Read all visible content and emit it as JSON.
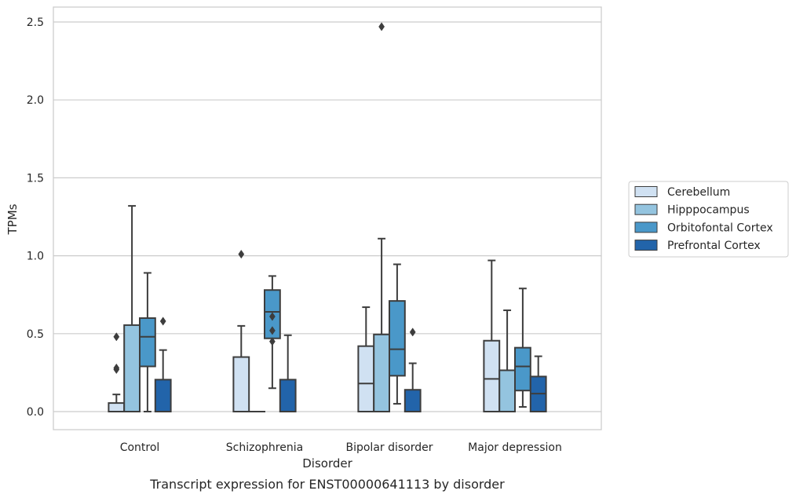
{
  "caption": "Transcript expression for ENST00000641113 by disorder",
  "chart_data": {
    "type": "box",
    "xlabel": "Disorder",
    "ylabel": "TPMs",
    "ylim": [
      -0.12,
      2.6
    ],
    "yticks": [
      "0.0",
      "0.5",
      "1.0",
      "1.5",
      "2.0",
      "2.5"
    ],
    "grid": "horizontal",
    "legend_position": "right",
    "categories": [
      "Control",
      "Schizophrenia",
      "Bipolar disorder",
      "Major depression"
    ],
    "series": [
      {
        "name": "Cerebellum",
        "color": "#d0e1f2",
        "boxes": [
          {
            "min": 0.0,
            "q1": 0.0,
            "median": 0.0,
            "q3": 0.055,
            "max": 0.11,
            "outliers": [
              0.27,
              0.28,
              0.48
            ]
          },
          {
            "min": 0.0,
            "q1": 0.0,
            "median": 0.0,
            "q3": 0.35,
            "max": 0.55,
            "outliers": [
              1.01
            ]
          },
          {
            "min": 0.0,
            "q1": 0.0,
            "median": 0.18,
            "q3": 0.42,
            "max": 0.67,
            "outliers": []
          },
          {
            "min": 0.0,
            "q1": 0.0,
            "median": 0.21,
            "q3": 0.455,
            "max": 0.97,
            "outliers": []
          }
        ]
      },
      {
        "name": "Hipppocampus",
        "color": "#94c4df",
        "boxes": [
          {
            "min": 0.0,
            "q1": 0.0,
            "median": 0.0,
            "q3": 0.555,
            "max": 1.32,
            "outliers": []
          },
          {
            "min": 0.0,
            "q1": 0.0,
            "median": 0.0,
            "q3": 0.0,
            "max": 0.0,
            "outliers": []
          },
          {
            "min": 0.0,
            "q1": 0.0,
            "median": 0.0,
            "q3": 0.495,
            "max": 1.11,
            "outliers": [
              2.47
            ]
          },
          {
            "min": 0.0,
            "q1": 0.0,
            "median": 0.0,
            "q3": 0.265,
            "max": 0.65,
            "outliers": []
          }
        ]
      },
      {
        "name": "Orbitofontal Cortex",
        "color": "#4a98c9",
        "boxes": [
          {
            "min": 0.0,
            "q1": 0.29,
            "median": 0.48,
            "q3": 0.6,
            "max": 0.89,
            "outliers": []
          },
          {
            "min": 0.15,
            "q1": 0.47,
            "median": 0.64,
            "q3": 0.78,
            "max": 0.87,
            "outliers": [
              0.45,
              0.52,
              0.61
            ]
          },
          {
            "min": 0.05,
            "q1": 0.23,
            "median": 0.4,
            "q3": 0.71,
            "max": 0.945,
            "outliers": []
          },
          {
            "min": 0.03,
            "q1": 0.135,
            "median": 0.29,
            "q3": 0.41,
            "max": 0.79,
            "outliers": []
          }
        ]
      },
      {
        "name": "Prefrontal Cortex",
        "color": "#2264aa",
        "boxes": [
          {
            "min": 0.0,
            "q1": 0.0,
            "median": 0.0,
            "q3": 0.205,
            "max": 0.395,
            "outliers": [
              0.58
            ]
          },
          {
            "min": 0.0,
            "q1": 0.0,
            "median": 0.0,
            "q3": 0.205,
            "max": 0.49,
            "outliers": []
          },
          {
            "min": 0.0,
            "q1": 0.0,
            "median": 0.0,
            "q3": 0.14,
            "max": 0.31,
            "outliers": [
              0.51
            ]
          },
          {
            "min": 0.0,
            "q1": 0.0,
            "median": 0.115,
            "q3": 0.225,
            "max": 0.355,
            "outliers": []
          }
        ]
      }
    ]
  }
}
